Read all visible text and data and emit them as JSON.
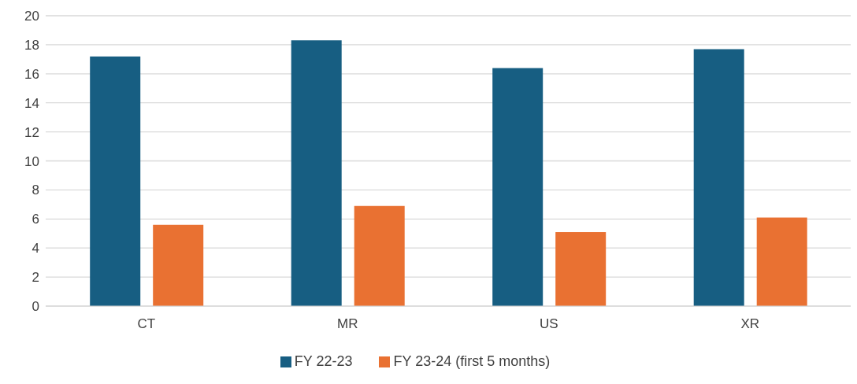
{
  "chart_data": {
    "type": "bar",
    "categories": [
      "CT",
      "MR",
      "US",
      "XR"
    ],
    "series": [
      {
        "name": "FY 22-23",
        "color": "#175e82",
        "values": [
          17.2,
          18.3,
          16.4,
          17.7
        ]
      },
      {
        "name": "FY 23-24 (first 5 months)",
        "color": "#e97132",
        "values": [
          5.6,
          6.9,
          5.1,
          6.1
        ]
      }
    ],
    "ylim": [
      0,
      20
    ],
    "yticks": [
      0,
      2,
      4,
      6,
      8,
      10,
      12,
      14,
      16,
      18,
      20
    ],
    "grid": "y",
    "legend": "bottom"
  }
}
